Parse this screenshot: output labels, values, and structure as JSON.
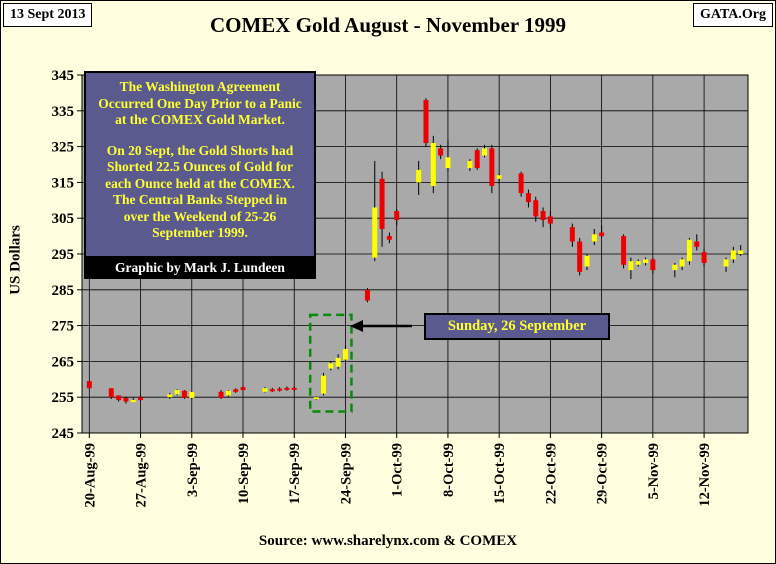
{
  "header": {
    "date": "13 Sept 2013",
    "site": "GATA.Org",
    "title": "COMEX  Gold  August - November 1999"
  },
  "footer": {
    "source": "Source: www.sharelynx.com & COMEX"
  },
  "annotations": {
    "note_lines": [
      "The Washington Agreement",
      "Occurred One Day Prior to a Panic",
      "at the COMEX Gold Market."
    ],
    "note_lines2": [
      "On 20 Sept, the Gold Shorts had",
      "Shorted 22.5 Ounces of Gold for",
      "each Ounce held at the COMEX.",
      "The Central Banks Stepped in",
      "over the Weekend of 25-26",
      "September 1999."
    ],
    "credit": "Graphic by Mark J. Lundeen",
    "callout": "Sunday, 26 September"
  },
  "colors": {
    "up": "#ffff00",
    "down": "#ee0000",
    "plot_bg": "#a9a9a9",
    "note_bg": "#5a5a8e",
    "highlight_box": "#0a8a0a",
    "arrow": "#000000"
  },
  "chart_data": {
    "type": "candlestick",
    "title": "COMEX  Gold  August - November 1999",
    "ylabel": "US Dollars",
    "xlabel": "",
    "ylim": [
      245,
      345
    ],
    "yticks": [
      245,
      255,
      265,
      275,
      285,
      295,
      305,
      315,
      325,
      335,
      345
    ],
    "xticks": [
      "20-Aug-99",
      "27-Aug-99",
      "3-Sep-99",
      "10-Sep-99",
      "17-Sep-99",
      "24-Sep-99",
      "1-Oct-99",
      "8-Oct-99",
      "15-Oct-99",
      "22-Oct-99",
      "29-Oct-99",
      "5-Nov-99",
      "12-Nov-99"
    ],
    "grid": true,
    "highlight_range": {
      "from": "1999-09-20",
      "to": "1999-09-24",
      "low": 251,
      "high": 278
    },
    "candles": [
      {
        "date": "1999-08-20",
        "open": 259.5,
        "high": 259.5,
        "low": 257.5,
        "close": 257.5
      },
      {
        "date": "1999-08-23",
        "open": 257.5,
        "high": 257.5,
        "low": 254.5,
        "close": 255
      },
      {
        "date": "1999-08-24",
        "open": 255.5,
        "high": 255.5,
        "low": 253.8,
        "close": 254.2
      },
      {
        "date": "1999-08-25",
        "open": 254.8,
        "high": 255.2,
        "low": 253.2,
        "close": 253.8
      },
      {
        "date": "1999-08-26",
        "open": 254.2,
        "high": 254.8,
        "low": 253.8,
        "close": 254.2
      },
      {
        "date": "1999-08-27",
        "open": 255,
        "high": 255.5,
        "low": 254,
        "close": 254.2
      },
      {
        "date": "1999-08-31",
        "open": 255,
        "high": 256.2,
        "low": 254.5,
        "close": 255.8
      },
      {
        "date": "1999-09-01",
        "open": 255.8,
        "high": 257.2,
        "low": 255.5,
        "close": 257
      },
      {
        "date": "1999-09-02",
        "open": 256.8,
        "high": 257,
        "low": 254.5,
        "close": 254.8
      },
      {
        "date": "1999-09-03",
        "open": 254.8,
        "high": 256.8,
        "low": 254.5,
        "close": 256.5
      },
      {
        "date": "1999-09-07",
        "open": 256.5,
        "high": 257,
        "low": 254.5,
        "close": 254.8
      },
      {
        "date": "1999-09-08",
        "open": 255.5,
        "high": 257,
        "low": 255.2,
        "close": 256.8
      },
      {
        "date": "1999-09-09",
        "open": 257.2,
        "high": 257.5,
        "low": 256.2,
        "close": 256.5
      },
      {
        "date": "1999-09-10",
        "open": 257.8,
        "high": 258.2,
        "low": 256.8,
        "close": 257
      },
      {
        "date": "1999-09-13",
        "open": 256.5,
        "high": 257.8,
        "low": 256.3,
        "close": 257.5
      },
      {
        "date": "1999-09-14",
        "open": 257.2,
        "high": 257.6,
        "low": 256.5,
        "close": 256.8
      },
      {
        "date": "1999-09-15",
        "open": 257.4,
        "high": 257.8,
        "low": 256.6,
        "close": 256.9
      },
      {
        "date": "1999-09-16",
        "open": 257.6,
        "high": 258,
        "low": 256.8,
        "close": 257.1
      },
      {
        "date": "1999-09-17",
        "open": 257.6,
        "high": 258,
        "low": 256.8,
        "close": 257.1
      },
      {
        "date": "1999-09-20",
        "open": 254.5,
        "high": 255.2,
        "low": 254.2,
        "close": 255
      },
      {
        "date": "1999-09-21",
        "open": 256,
        "high": 261.8,
        "low": 255.5,
        "close": 261
      },
      {
        "date": "1999-09-22",
        "open": 263,
        "high": 265,
        "low": 262.5,
        "close": 264.5
      },
      {
        "date": "1999-09-23",
        "open": 263.5,
        "high": 267,
        "low": 262.8,
        "close": 266
      },
      {
        "date": "1999-09-24",
        "open": 265.5,
        "high": 269.5,
        "low": 265,
        "close": 268.5
      },
      {
        "date": "1999-09-27",
        "open": 285,
        "high": 285.5,
        "low": 281.5,
        "close": 282
      },
      {
        "date": "1999-09-28",
        "open": 294,
        "high": 321,
        "low": 293,
        "close": 308
      },
      {
        "date": "1999-09-29",
        "open": 316,
        "high": 318,
        "low": 297,
        "close": 302
      },
      {
        "date": "1999-09-30",
        "open": 300,
        "high": 301,
        "low": 298,
        "close": 299
      },
      {
        "date": "1999-10-01",
        "open": 307,
        "high": 307.5,
        "low": 303,
        "close": 304.5
      },
      {
        "date": "1999-10-04",
        "open": 315,
        "high": 321,
        "low": 311.5,
        "close": 318.5
      },
      {
        "date": "1999-10-05",
        "open": 338,
        "high": 338.5,
        "low": 325,
        "close": 326
      },
      {
        "date": "1999-10-06",
        "open": 314,
        "high": 328,
        "low": 312,
        "close": 326
      },
      {
        "date": "1999-10-07",
        "open": 324.5,
        "high": 325.5,
        "low": 321.5,
        "close": 322.5
      },
      {
        "date": "1999-10-08",
        "open": 319,
        "high": 327,
        "low": 318,
        "close": 322
      },
      {
        "date": "1999-10-11",
        "open": 319,
        "high": 321.5,
        "low": 318.2,
        "close": 321
      },
      {
        "date": "1999-10-12",
        "open": 324,
        "high": 324.5,
        "low": 318.5,
        "close": 319
      },
      {
        "date": "1999-10-13",
        "open": 322.5,
        "high": 325.5,
        "low": 322,
        "close": 324.5
      },
      {
        "date": "1999-10-14",
        "open": 324.5,
        "high": 325.5,
        "low": 312,
        "close": 314
      },
      {
        "date": "1999-10-15",
        "open": 316,
        "high": 317.5,
        "low": 314.5,
        "close": 317
      },
      {
        "date": "1999-10-18",
        "open": 317.5,
        "high": 318,
        "low": 311,
        "close": 312
      },
      {
        "date": "1999-10-19",
        "open": 312,
        "high": 313,
        "low": 308,
        "close": 309.5
      },
      {
        "date": "1999-10-20",
        "open": 310,
        "high": 311,
        "low": 304,
        "close": 305.5
      },
      {
        "date": "1999-10-21",
        "open": 307,
        "high": 308,
        "low": 302.5,
        "close": 304.5
      },
      {
        "date": "1999-10-22",
        "open": 305.5,
        "high": 307,
        "low": 302,
        "close": 303.5
      },
      {
        "date": "1999-10-25",
        "open": 302.5,
        "high": 303.5,
        "low": 297,
        "close": 298.5
      },
      {
        "date": "1999-10-26",
        "open": 298.5,
        "high": 299.5,
        "low": 289,
        "close": 290
      },
      {
        "date": "1999-10-27",
        "open": 291.5,
        "high": 295,
        "low": 290.5,
        "close": 294.5
      },
      {
        "date": "1999-10-28",
        "open": 298.5,
        "high": 302,
        "low": 297.5,
        "close": 300.5
      },
      {
        "date": "1999-10-29",
        "open": 301,
        "high": 303,
        "low": 299.5,
        "close": 300
      },
      {
        "date": "1999-11-01",
        "open": 300,
        "high": 300.5,
        "low": 291,
        "close": 292
      },
      {
        "date": "1999-11-02",
        "open": 290.5,
        "high": 294,
        "low": 288,
        "close": 293
      },
      {
        "date": "1999-11-03",
        "open": 292,
        "high": 293.5,
        "low": 291.5,
        "close": 293
      },
      {
        "date": "1999-11-04",
        "open": 292.5,
        "high": 294,
        "low": 291.8,
        "close": 293.5
      },
      {
        "date": "1999-11-05",
        "open": 293.5,
        "high": 294,
        "low": 289.5,
        "close": 290.5
      },
      {
        "date": "1999-11-08",
        "open": 290.5,
        "high": 292.5,
        "low": 288.5,
        "close": 292
      },
      {
        "date": "1999-11-09",
        "open": 291.5,
        "high": 294,
        "low": 290.5,
        "close": 293.5
      },
      {
        "date": "1999-11-10",
        "open": 293,
        "high": 299.5,
        "low": 292,
        "close": 299
      },
      {
        "date": "1999-11-11",
        "open": 298.5,
        "high": 300.5,
        "low": 296,
        "close": 297
      },
      {
        "date": "1999-11-12",
        "open": 295.5,
        "high": 296.5,
        "low": 291.5,
        "close": 292.5
      },
      {
        "date": "1999-11-15",
        "open": 291.5,
        "high": 294,
        "low": 290,
        "close": 293.5
      },
      {
        "date": "1999-11-16",
        "open": 293.5,
        "high": 297,
        "low": 292.5,
        "close": 296
      },
      {
        "date": "1999-11-17",
        "open": 295,
        "high": 297.5,
        "low": 294.5,
        "close": 296
      }
    ]
  }
}
